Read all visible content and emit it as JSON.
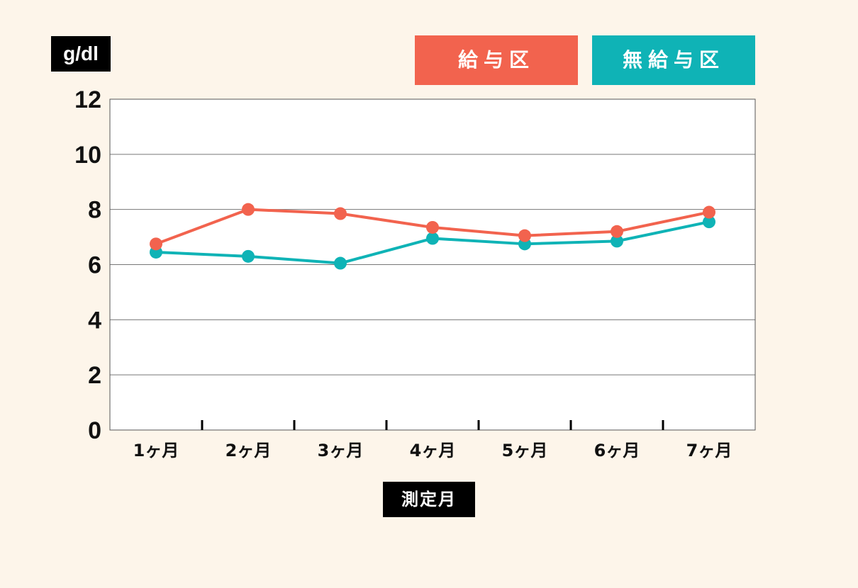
{
  "chart_data": {
    "type": "line",
    "ylabel": "g/dl",
    "xlabel": "測定月",
    "categories": [
      "1ヶ月",
      "2ヶ月",
      "3ヶ月",
      "4ヶ月",
      "5ヶ月",
      "6ヶ月",
      "7ヶ月"
    ],
    "ylim": [
      0,
      12
    ],
    "yticks": [
      0,
      2,
      4,
      6,
      8,
      10,
      12
    ],
    "grid": true,
    "legend_position": "top-right",
    "series": [
      {
        "name": "給与区",
        "color": "#f2634e",
        "values": [
          6.75,
          8.0,
          7.85,
          7.35,
          7.05,
          7.2,
          7.9
        ]
      },
      {
        "name": "無給与区",
        "color": "#0fb3b6",
        "values": [
          6.45,
          6.3,
          6.05,
          6.95,
          6.75,
          6.85,
          7.55
        ]
      }
    ]
  }
}
